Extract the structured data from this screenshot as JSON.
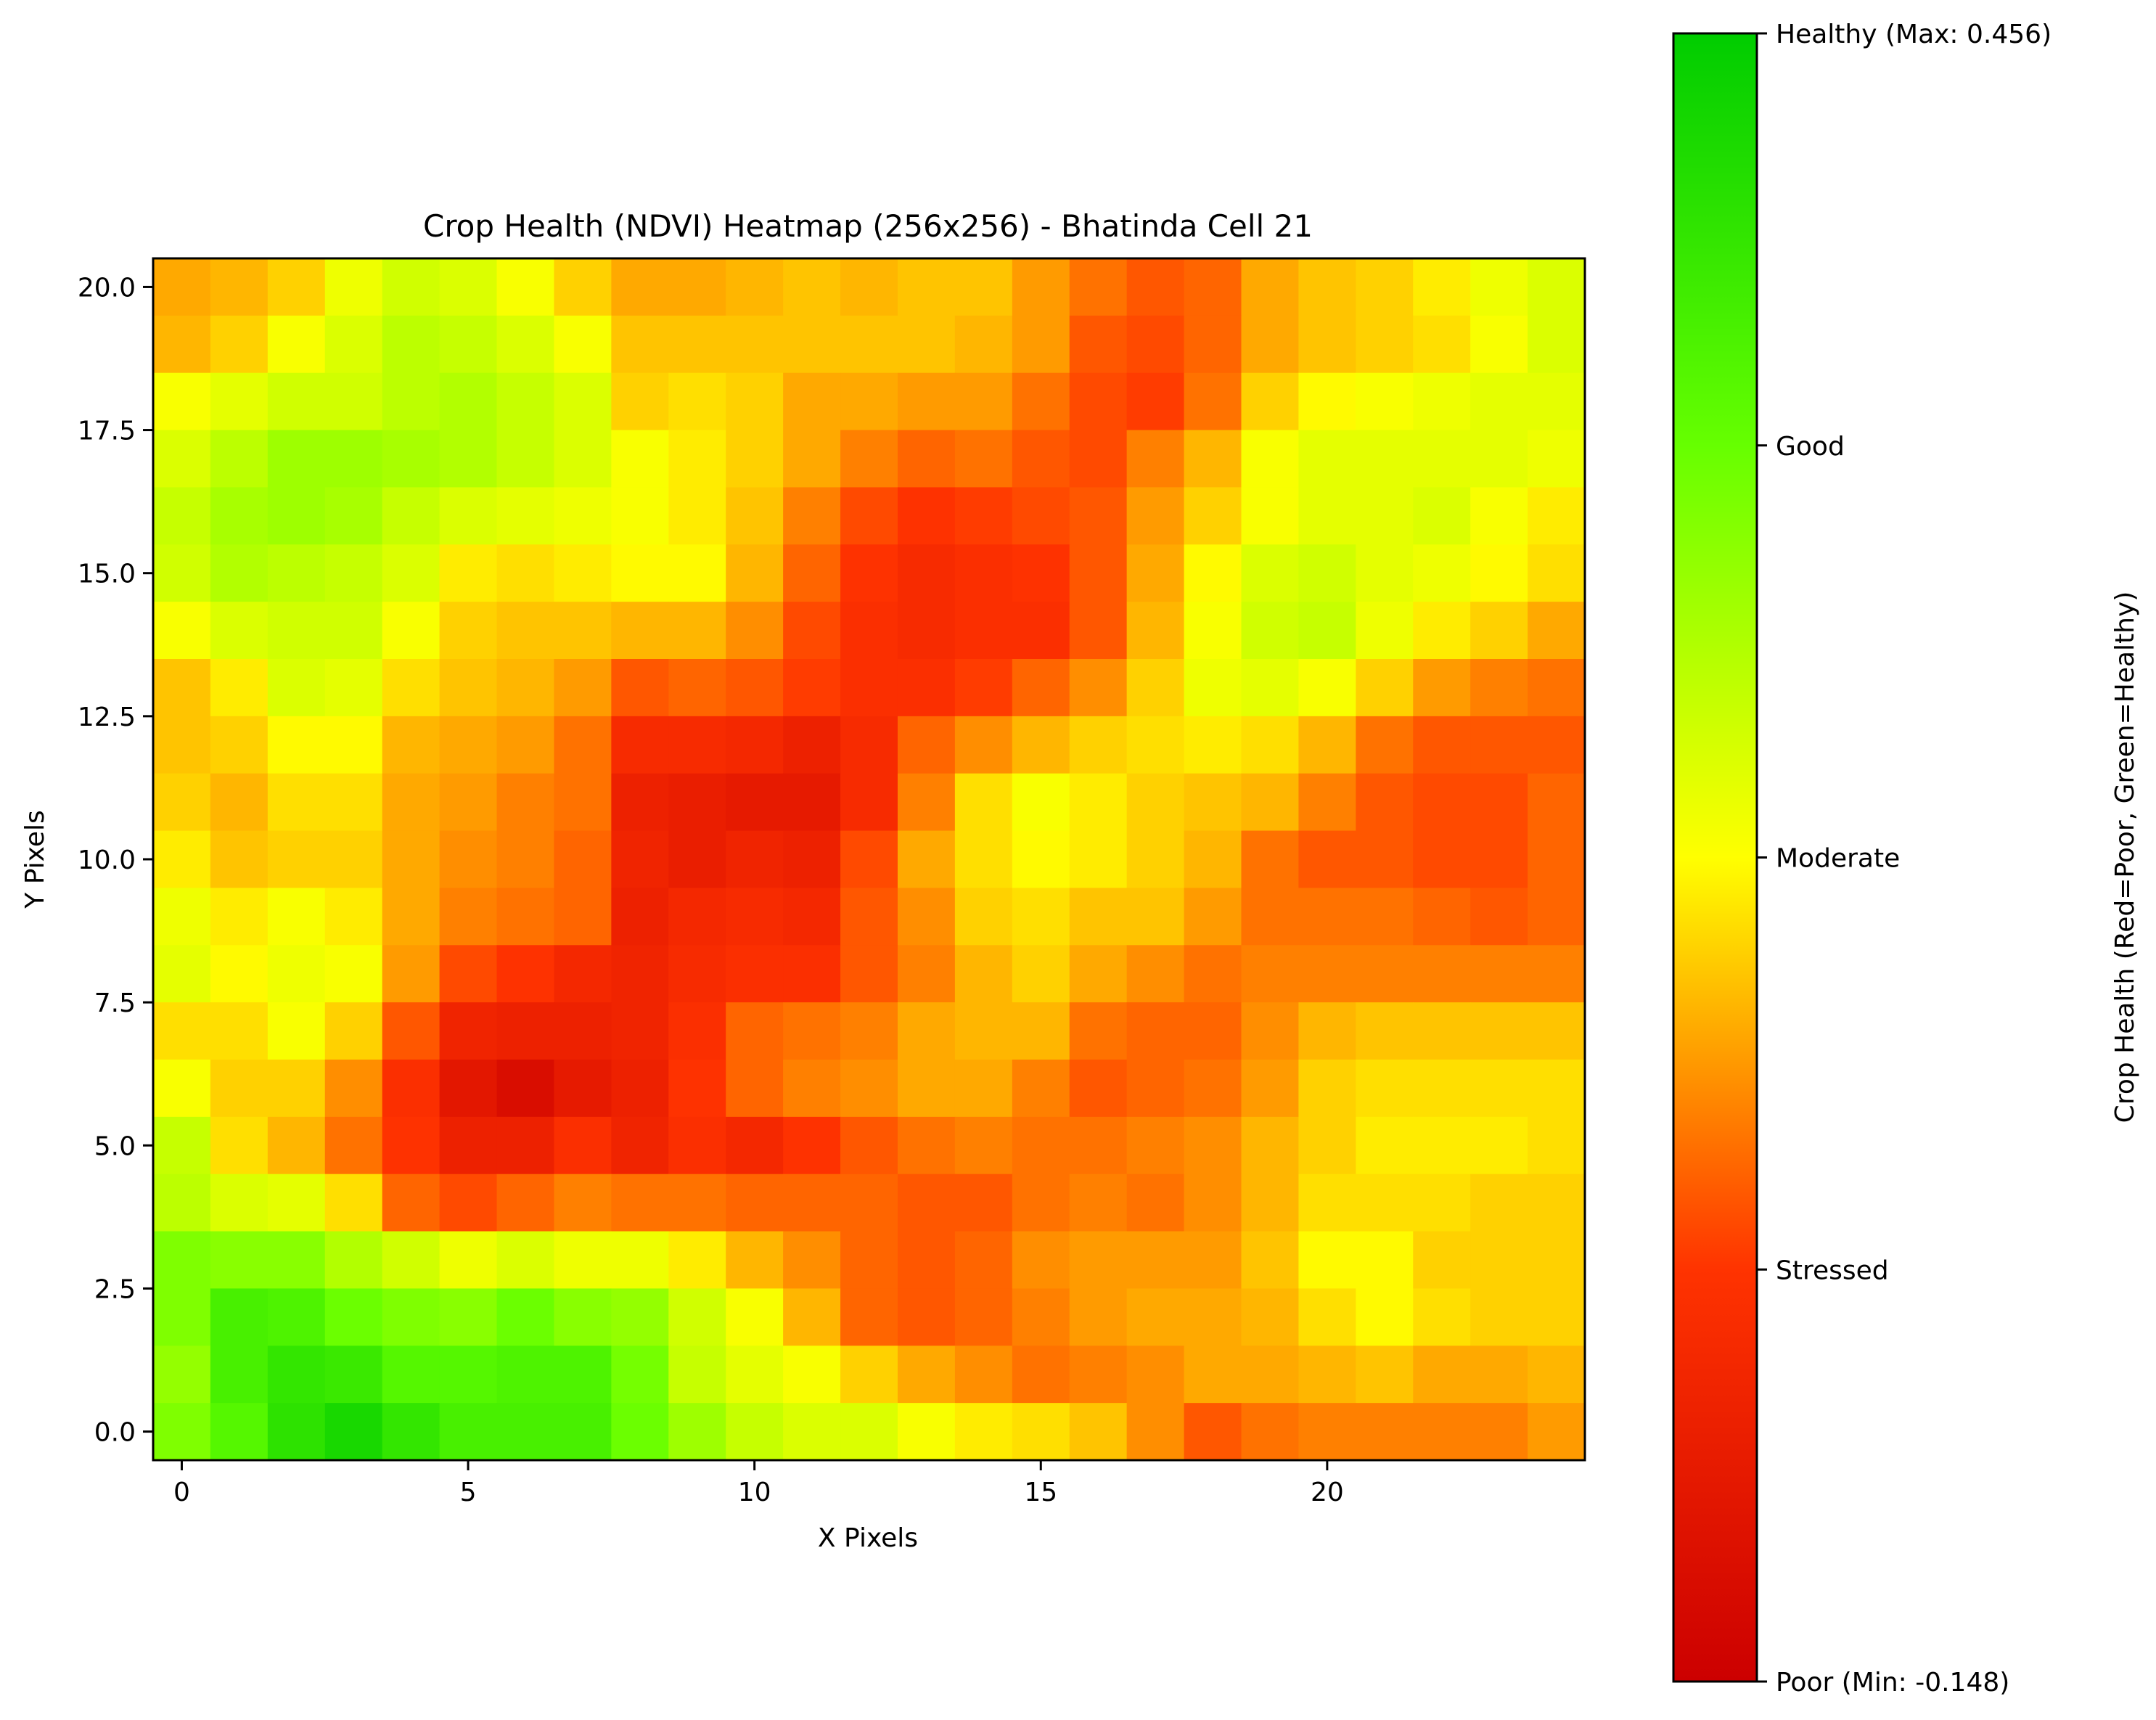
{
  "chart_data": {
    "type": "heatmap",
    "title": "Crop Health (NDVI) Heatmap (256x256) - Bhatinda Cell 21",
    "xlabel": "X Pixels",
    "ylabel": "Y Pixels",
    "xlim": [
      -0.5,
      24.5
    ],
    "ylim": [
      -0.5,
      20.5
    ],
    "xticks": [
      0,
      5,
      10,
      15,
      20
    ],
    "xtick_labels": [
      "0",
      "5",
      "10",
      "15",
      "20"
    ],
    "yticks": [
      0.0,
      2.5,
      5.0,
      7.5,
      10.0,
      12.5,
      15.0,
      17.5,
      20.0
    ],
    "ytick_labels": [
      "0.0",
      "2.5",
      "5.0",
      "7.5",
      "10.0",
      "12.5",
      "15.0",
      "17.5",
      "20.0"
    ],
    "grid": false,
    "value_range": [
      -0.148,
      0.456
    ],
    "row_order": "y=20 down to y=0, x=0..24",
    "values": [
      [
        0.09,
        0.1,
        0.12,
        0.17,
        0.2,
        0.19,
        0.16,
        0.12,
        0.09,
        0.09,
        0.1,
        0.11,
        0.1,
        0.11,
        0.11,
        0.08,
        0.05,
        0.03,
        0.04,
        0.09,
        0.11,
        0.12,
        0.14,
        0.17,
        0.19
      ],
      [
        0.1,
        0.12,
        0.16,
        0.19,
        0.22,
        0.21,
        0.19,
        0.16,
        0.11,
        0.11,
        0.11,
        0.11,
        0.11,
        0.11,
        0.1,
        0.08,
        0.03,
        0.02,
        0.04,
        0.09,
        0.11,
        0.12,
        0.13,
        0.16,
        0.19
      ],
      [
        0.16,
        0.18,
        0.2,
        0.2,
        0.22,
        0.23,
        0.21,
        0.19,
        0.12,
        0.13,
        0.12,
        0.09,
        0.09,
        0.08,
        0.08,
        0.05,
        0.02,
        0.01,
        0.05,
        0.12,
        0.15,
        0.16,
        0.17,
        0.18,
        0.18
      ],
      [
        0.19,
        0.22,
        0.25,
        0.25,
        0.24,
        0.23,
        0.21,
        0.19,
        0.16,
        0.14,
        0.12,
        0.09,
        0.06,
        0.04,
        0.05,
        0.03,
        0.02,
        0.06,
        0.1,
        0.16,
        0.18,
        0.18,
        0.18,
        0.18,
        0.17
      ],
      [
        0.21,
        0.24,
        0.25,
        0.24,
        0.21,
        0.19,
        0.18,
        0.17,
        0.16,
        0.14,
        0.11,
        0.06,
        0.02,
        0.0,
        0.01,
        0.02,
        0.03,
        0.08,
        0.12,
        0.16,
        0.18,
        0.18,
        0.19,
        0.16,
        0.14
      ],
      [
        0.2,
        0.23,
        0.22,
        0.21,
        0.19,
        0.14,
        0.13,
        0.14,
        0.15,
        0.15,
        0.1,
        0.04,
        0.0,
        -0.02,
        -0.01,
        0.0,
        0.03,
        0.09,
        0.15,
        0.19,
        0.2,
        0.18,
        0.17,
        0.15,
        0.13
      ],
      [
        0.16,
        0.19,
        0.2,
        0.2,
        0.16,
        0.12,
        0.11,
        0.11,
        0.1,
        0.1,
        0.07,
        0.02,
        -0.01,
        -0.02,
        -0.01,
        -0.01,
        0.03,
        0.1,
        0.16,
        0.2,
        0.21,
        0.17,
        0.14,
        0.12,
        0.09
      ],
      [
        0.11,
        0.14,
        0.19,
        0.18,
        0.13,
        0.11,
        0.1,
        0.08,
        0.03,
        0.04,
        0.03,
        0.01,
        -0.01,
        -0.01,
        0.01,
        0.04,
        0.07,
        0.12,
        0.17,
        0.18,
        0.16,
        0.12,
        0.08,
        0.06,
        0.05
      ],
      [
        0.11,
        0.12,
        0.15,
        0.15,
        0.1,
        0.09,
        0.08,
        0.05,
        -0.02,
        -0.02,
        -0.03,
        -0.05,
        -0.02,
        0.04,
        0.07,
        0.1,
        0.12,
        0.13,
        0.14,
        0.13,
        0.1,
        0.05,
        0.03,
        0.03,
        0.03
      ],
      [
        0.12,
        0.1,
        0.13,
        0.13,
        0.09,
        0.08,
        0.06,
        0.05,
        -0.05,
        -0.06,
        -0.07,
        -0.07,
        -0.02,
        0.06,
        0.13,
        0.16,
        0.14,
        0.12,
        0.11,
        0.1,
        0.06,
        0.03,
        0.02,
        0.02,
        0.04
      ],
      [
        0.14,
        0.11,
        0.12,
        0.12,
        0.09,
        0.07,
        0.06,
        0.04,
        -0.04,
        -0.06,
        -0.04,
        -0.05,
        0.02,
        0.09,
        0.13,
        0.15,
        0.14,
        0.12,
        0.1,
        0.05,
        0.03,
        0.03,
        0.02,
        0.02,
        0.04
      ],
      [
        0.17,
        0.14,
        0.16,
        0.14,
        0.09,
        0.06,
        0.05,
        0.04,
        -0.05,
        -0.03,
        -0.02,
        -0.03,
        0.03,
        0.07,
        0.12,
        0.13,
        0.11,
        0.11,
        0.08,
        0.05,
        0.05,
        0.05,
        0.04,
        0.03,
        0.04
      ],
      [
        0.18,
        0.15,
        0.17,
        0.16,
        0.08,
        0.02,
        0.0,
        -0.03,
        -0.04,
        -0.02,
        -0.01,
        -0.01,
        0.03,
        0.06,
        0.1,
        0.12,
        0.09,
        0.07,
        0.05,
        0.06,
        0.06,
        0.06,
        0.06,
        0.06,
        0.06
      ],
      [
        0.13,
        0.13,
        0.16,
        0.12,
        0.03,
        -0.04,
        -0.05,
        -0.05,
        -0.04,
        -0.01,
        0.04,
        0.05,
        0.06,
        0.09,
        0.1,
        0.1,
        0.05,
        0.04,
        0.04,
        0.07,
        0.1,
        0.11,
        0.11,
        0.11,
        0.11
      ],
      [
        0.16,
        0.12,
        0.12,
        0.07,
        -0.01,
        -0.08,
        -0.11,
        -0.07,
        -0.05,
        0.0,
        0.04,
        0.06,
        0.07,
        0.09,
        0.09,
        0.06,
        0.03,
        0.04,
        0.05,
        0.08,
        0.12,
        0.13,
        0.13,
        0.13,
        0.13
      ],
      [
        0.21,
        0.13,
        0.1,
        0.05,
        0.0,
        -0.05,
        -0.05,
        -0.01,
        -0.04,
        -0.01,
        -0.03,
        0.0,
        0.03,
        0.05,
        0.06,
        0.05,
        0.05,
        0.06,
        0.07,
        0.1,
        0.12,
        0.14,
        0.14,
        0.14,
        0.13
      ],
      [
        0.22,
        0.19,
        0.18,
        0.13,
        0.04,
        0.02,
        0.04,
        0.06,
        0.05,
        0.05,
        0.04,
        0.04,
        0.04,
        0.03,
        0.03,
        0.05,
        0.06,
        0.05,
        0.07,
        0.1,
        0.13,
        0.13,
        0.13,
        0.12,
        0.12
      ],
      [
        0.28,
        0.27,
        0.27,
        0.23,
        0.2,
        0.17,
        0.19,
        0.17,
        0.17,
        0.14,
        0.1,
        0.07,
        0.04,
        0.03,
        0.04,
        0.07,
        0.08,
        0.08,
        0.08,
        0.11,
        0.15,
        0.15,
        0.12,
        0.12,
        0.12
      ],
      [
        0.28,
        0.35,
        0.34,
        0.3,
        0.28,
        0.27,
        0.3,
        0.27,
        0.26,
        0.2,
        0.16,
        0.1,
        0.04,
        0.03,
        0.04,
        0.06,
        0.08,
        0.09,
        0.09,
        0.1,
        0.13,
        0.15,
        0.13,
        0.12,
        0.12
      ],
      [
        0.26,
        0.35,
        0.38,
        0.37,
        0.33,
        0.33,
        0.34,
        0.34,
        0.29,
        0.21,
        0.18,
        0.16,
        0.12,
        0.09,
        0.07,
        0.05,
        0.06,
        0.07,
        0.09,
        0.09,
        0.1,
        0.11,
        0.09,
        0.09,
        0.1
      ],
      [
        0.28,
        0.33,
        0.39,
        0.42,
        0.38,
        0.35,
        0.35,
        0.35,
        0.3,
        0.25,
        0.21,
        0.19,
        0.19,
        0.16,
        0.14,
        0.13,
        0.11,
        0.07,
        0.03,
        0.05,
        0.06,
        0.06,
        0.06,
        0.06,
        0.08
      ]
    ],
    "colormap": [
      "#cc0000",
      "#ff3300",
      "#ffff00",
      "#66ff00",
      "#00cc00"
    ],
    "colorbar": {
      "label": "Crop Health (Red=Poor, Green=Healthy)",
      "tick_labels": [
        "Poor (Min: -0.148)",
        "Stressed",
        "Moderate",
        "Good",
        "Healthy (Max: 0.456)"
      ],
      "tick_values": [
        -0.148,
        0.003,
        0.154,
        0.305,
        0.456
      ]
    }
  }
}
